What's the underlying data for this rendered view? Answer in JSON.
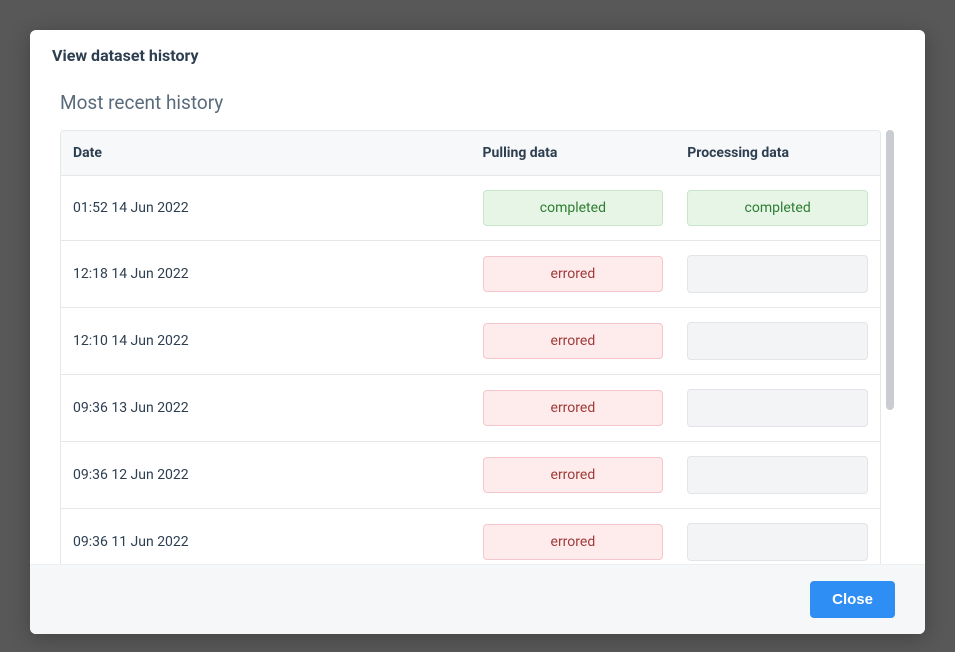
{
  "modal": {
    "title": "View dataset history",
    "section_title": "Most recent history",
    "close_label": "Close"
  },
  "table": {
    "columns": [
      "Date",
      "Pulling data",
      "Processing data"
    ],
    "rows": [
      {
        "date": "01:52 14 Jun 2022",
        "pulling": "completed",
        "processing": "completed"
      },
      {
        "date": "12:18 14 Jun 2022",
        "pulling": "errored",
        "processing": ""
      },
      {
        "date": "12:10 14 Jun 2022",
        "pulling": "errored",
        "processing": ""
      },
      {
        "date": "09:36 13 Jun 2022",
        "pulling": "errored",
        "processing": ""
      },
      {
        "date": "09:36 12 Jun 2022",
        "pulling": "errored",
        "processing": ""
      },
      {
        "date": "09:36 11 Jun 2022",
        "pulling": "errored",
        "processing": ""
      }
    ]
  },
  "status_styles": {
    "completed": {
      "bg": "#e6f5e6",
      "border": "#c8e6c9",
      "text": "#2e7d32"
    },
    "errored": {
      "bg": "#fdeceb",
      "border": "#f5c6cb",
      "text": "#a13a3a"
    },
    "empty": {
      "bg": "#f3f4f5",
      "border": "#e2e4e7",
      "text": "#333333"
    }
  },
  "colors": {
    "backdrop": "rgba(60,60,60,0.55)",
    "modal_bg": "#ffffff",
    "header_text": "#2c3e50",
    "section_text": "#5a6b7b",
    "table_header_bg": "#f7f8fa",
    "border": "#e5e8eb",
    "footer_bg": "#f6f7f8",
    "button_bg": "#2f8ef4",
    "button_text": "#ffffff",
    "scrollbar_thumb": "#c9ccd0"
  }
}
